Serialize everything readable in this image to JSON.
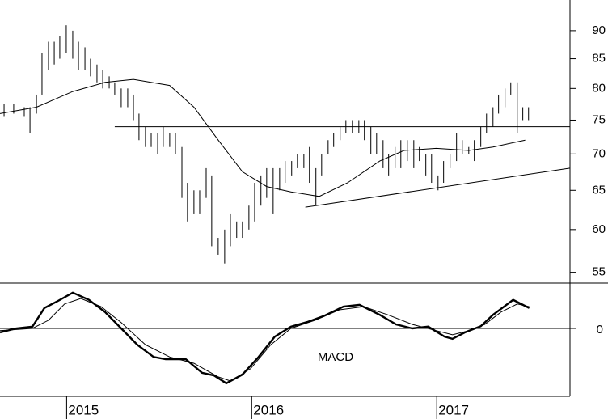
{
  "chart_data": [
    {
      "type": "ohlc",
      "log_scale": true,
      "color": "#000000",
      "xlim": [
        2014.64,
        2017.72
      ],
      "ylim": [
        53.8,
        95.8
      ],
      "yticks": [
        55,
        60,
        65,
        70,
        75,
        80,
        85,
        90
      ],
      "x": [
        2014.662,
        2014.714,
        2014.771,
        2014.802,
        2014.837,
        2014.867,
        2014.902,
        2014.933,
        2014.963,
        2014.998,
        2015.033,
        2015.064,
        2015.099,
        2015.129,
        2015.164,
        2015.195,
        2015.23,
        2015.26,
        2015.295,
        2015.33,
        2015.361,
        2015.391,
        2015.426,
        2015.457,
        2015.492,
        2015.522,
        2015.557,
        2015.588,
        2015.623,
        2015.653,
        2015.688,
        2015.719,
        2015.754,
        2015.784,
        2015.819,
        2015.854,
        2015.885,
        2015.919,
        2015.95,
        2015.985,
        2016.016,
        2016.05,
        2016.081,
        2016.116,
        2016.151,
        2016.181,
        2016.216,
        2016.247,
        2016.282,
        2016.312,
        2016.347,
        2016.378,
        2016.413,
        2016.443,
        2016.478,
        2016.509,
        2016.544,
        2016.579,
        2016.609,
        2016.644,
        2016.675,
        2016.71,
        2016.74,
        2016.775,
        2016.806,
        2016.841,
        2016.876,
        2016.906,
        2016.941,
        2016.972,
        2017.007,
        2017.037,
        2017.072,
        2017.107,
        2017.138,
        2017.173,
        2017.203,
        2017.238,
        2017.269,
        2017.304,
        2017.334,
        2017.369,
        2017.4,
        2017.435,
        2017.465,
        2017.496
      ],
      "high": [
        77.5,
        77.5,
        77,
        77,
        79,
        86,
        88,
        88,
        89,
        91,
        90,
        88,
        87,
        85,
        84,
        83,
        82,
        81,
        80,
        80,
        79,
        76,
        74,
        73,
        73,
        74,
        73,
        73,
        71,
        66,
        65,
        65,
        68,
        67,
        59,
        60,
        62,
        61,
        61,
        63,
        66,
        67,
        68,
        68,
        68,
        69,
        69,
        70,
        70,
        71,
        68,
        70,
        72,
        73,
        74,
        75,
        75,
        75,
        75,
        74,
        73,
        72,
        70,
        71,
        72,
        72,
        72,
        71,
        70,
        70,
        67,
        69,
        70,
        73,
        72,
        71,
        72,
        74,
        76,
        77,
        79,
        80,
        81,
        81,
        77,
        77
      ],
      "low": [
        75.5,
        76,
        75.5,
        73,
        76,
        79,
        83,
        84,
        85,
        86,
        85,
        83,
        83,
        82,
        81,
        80,
        80,
        79,
        77,
        77,
        75,
        72,
        71,
        71,
        70,
        71,
        71,
        70,
        64,
        61,
        62,
        62,
        64,
        58,
        57,
        56,
        58,
        59,
        59,
        60,
        61,
        63,
        64,
        62,
        65,
        66,
        67,
        68,
        68,
        66,
        63,
        67,
        70,
        71,
        72,
        73,
        73,
        73,
        72,
        70,
        70,
        68,
        67,
        68,
        68,
        69,
        68,
        69,
        67,
        66,
        65,
        66,
        68,
        69,
        70,
        70,
        69,
        71,
        73,
        74,
        76,
        77,
        79,
        73,
        75,
        75
      ],
      "moving_average": {
        "x": [
          2014.64,
          2014.837,
          2015.033,
          2015.208,
          2015.361,
          2015.557,
          2015.688,
          2015.819,
          2015.95,
          2016.081,
          2016.212,
          2016.365,
          2016.518,
          2016.692,
          2016.823,
          2016.998,
          2017.173,
          2017.304,
          2017.478
        ],
        "values": [
          76,
          77,
          79.5,
          81,
          81.5,
          80.5,
          77,
          72,
          67.5,
          65.5,
          64.8,
          64.2,
          66,
          69,
          70.5,
          70.8,
          70.5,
          71,
          72
        ]
      },
      "trend_lines": [
        {
          "x": [
            2015.26,
            2017.72
          ],
          "y": [
            74,
            74
          ]
        },
        {
          "x": [
            2016.29,
            2017.72
          ],
          "y": [
            62.8,
            68
          ]
        }
      ]
    },
    {
      "type": "line",
      "annotation": "MACD",
      "xlim": [
        2014.64,
        2017.72
      ],
      "ylim": [
        -1.5,
        1
      ],
      "yticks": [
        0
      ],
      "xticks": [
        2015,
        2016,
        2017
      ],
      "series": [
        {
          "color": "#000000",
          "width": 2.4,
          "x": [
            2014.64,
            2014.727,
            2014.815,
            2014.88,
            2014.946,
            2015.033,
            2015.12,
            2015.208,
            2015.295,
            2015.382,
            2015.47,
            2015.535,
            2015.644,
            2015.732,
            2015.797,
            2015.863,
            2015.95,
            2016.037,
            2016.125,
            2016.212,
            2016.299,
            2016.387,
            2016.496,
            2016.583,
            2016.692,
            2016.78,
            2016.867,
            2016.954,
            2017.042,
            2017.085,
            2017.151,
            2017.238,
            2017.304,
            2017.413,
            2017.5
          ],
          "values": [
            -0.09,
            0,
            0.04,
            0.45,
            0.59,
            0.79,
            0.63,
            0.36,
            0,
            -0.36,
            -0.63,
            -0.68,
            -0.68,
            -0.98,
            -1.04,
            -1.21,
            -1.02,
            -0.63,
            -0.18,
            0.04,
            0.14,
            0.27,
            0.48,
            0.52,
            0.3,
            0.09,
            0,
            0.04,
            -0.18,
            -0.23,
            -0.09,
            0.05,
            0.3,
            0.63,
            0.45
          ]
        },
        {
          "color": "#000000",
          "width": 1,
          "x": [
            2014.64,
            2014.815,
            2014.902,
            2014.989,
            2015.077,
            2015.186,
            2015.295,
            2015.426,
            2015.557,
            2015.688,
            2015.819,
            2015.885,
            2015.994,
            2016.103,
            2016.212,
            2016.343,
            2016.474,
            2016.605,
            2016.736,
            2016.867,
            2016.998,
            2017.085,
            2017.173,
            2017.26,
            2017.347,
            2017.435,
            2017.5
          ],
          "values": [
            -0.05,
            0,
            0.18,
            0.54,
            0.66,
            0.48,
            0.13,
            -0.36,
            -0.63,
            -0.77,
            -1.07,
            -1.16,
            -0.89,
            -0.36,
            0,
            0.18,
            0.41,
            0.48,
            0.3,
            0.09,
            -0.05,
            -0.14,
            -0.05,
            0.09,
            0.36,
            0.54,
            0.48
          ]
        }
      ]
    }
  ]
}
